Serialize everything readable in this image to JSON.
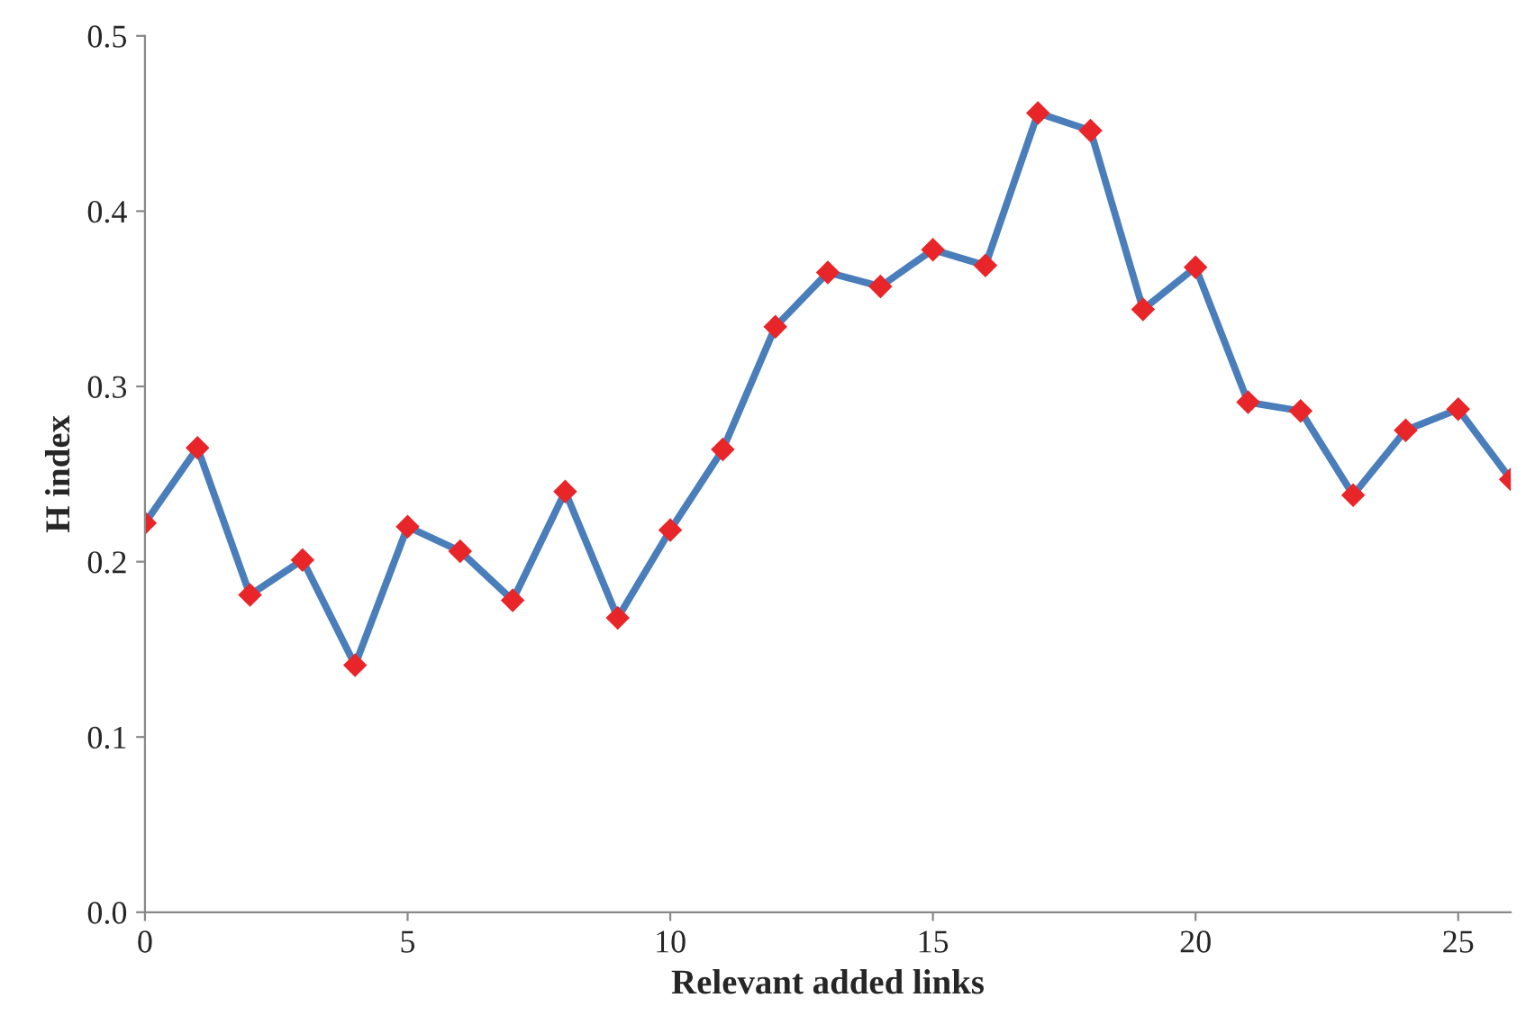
{
  "chart_data": {
    "type": "line",
    "xlabel": "Relevant added links",
    "ylabel": "H index",
    "x": [
      0,
      1,
      2,
      3,
      4,
      5,
      6,
      7,
      8,
      9,
      10,
      11,
      12,
      13,
      14,
      15,
      16,
      17,
      18,
      19,
      20,
      21,
      22,
      23,
      24,
      25,
      26
    ],
    "series": [
      {
        "color": "#4a7ebb",
        "values": [
          0.222,
          0.265,
          0.181,
          0.201,
          0.141,
          0.22,
          0.206,
          0.178,
          0.24,
          0.168,
          0.218,
          0.264,
          0.334,
          0.365,
          0.357,
          0.378,
          0.369,
          0.456,
          0.446,
          0.344,
          0.368,
          0.291,
          0.286,
          0.238,
          0.275,
          0.287,
          0.247
        ]
      }
    ],
    "xlim": [
      0,
      26
    ],
    "xticks": [
      0,
      5,
      10,
      15,
      20,
      25
    ],
    "ylim": [
      0,
      0.5
    ],
    "yticks": [
      {
        "value": 0,
        "label": "0.0"
      },
      {
        "value": 0.1,
        "label": "0.1"
      },
      {
        "value": 0.2,
        "label": "0.2"
      },
      {
        "value": 0.3,
        "label": "0.3"
      },
      {
        "value": 0.4,
        "label": "0.4"
      },
      {
        "value": 0.5,
        "label": "0.5"
      }
    ],
    "marker": "diamond",
    "line_style": "solid",
    "grid": false,
    "legend": false
  }
}
